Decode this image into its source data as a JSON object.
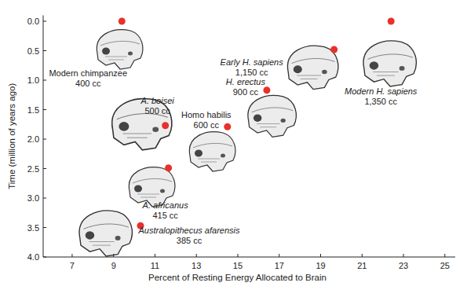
{
  "chart_data": {
    "type": "scatter",
    "x_label": "Percent of Resting Energy Allocated to Brain",
    "y_label": "Time (million of years ago)",
    "x": [
      9.4,
      22.4,
      19.65,
      16.4,
      14.5,
      11.5,
      11.65,
      10.3
    ],
    "values": [
      0.0,
      0.0,
      0.48,
      1.17,
      1.79,
      1.77,
      2.49,
      3.47
    ],
    "color": "#e8312a",
    "marker": "circle",
    "point_labels": [
      "Modern chimpanzee",
      "Modern H. sapiens",
      "Early H. sapiens",
      "H. erectus",
      "Homo habilis",
      "A. boisei",
      "A. africanus",
      "Australopithecus afarensis"
    ],
    "point_sublabels": [
      "400 cc",
      "1,350 cc",
      "1,150 cc",
      "900 cc",
      "600 cc",
      "500 cc",
      "415 cc",
      "385 cc"
    ],
    "xlim": [
      5.6,
      25.5
    ],
    "ylim": [
      -0.1,
      4.0
    ],
    "xticks": [
      7,
      9,
      11,
      13,
      15,
      17,
      19,
      21,
      23,
      25
    ],
    "yticks": [
      {
        "value": 0,
        "label": "0.0"
      },
      0.5,
      {
        "value": 1,
        "label": "1.0"
      },
      1.5,
      {
        "value": 2,
        "label": "2.0"
      },
      2.5,
      {
        "value": 3,
        "label": "3.0"
      },
      3.5,
      {
        "value": 4,
        "label": "4.0"
      }
    ],
    "grid": false
  }
}
